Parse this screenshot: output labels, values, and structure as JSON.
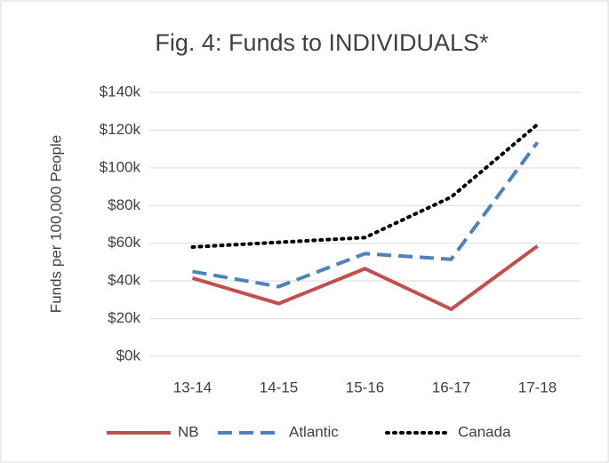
{
  "chart_data": {
    "type": "line",
    "title": "Fig. 4: Funds to INDIVIDUALS*",
    "y_label": "Funds per 100,000 People",
    "categories": [
      "13-14",
      "14-15",
      "15-16",
      "16-17",
      "17-18"
    ],
    "series": [
      {
        "name": "NB",
        "color": "#c0504d",
        "dash": "solid",
        "values": [
          41500,
          28000,
          46500,
          25000,
          58500
        ]
      },
      {
        "name": "Atlantic",
        "color": "#4f81bd",
        "dash": "dashed",
        "values": [
          45000,
          37000,
          54500,
          51500,
          113500
        ]
      },
      {
        "name": "Canada",
        "color": "#000000",
        "dash": "dotted",
        "values": [
          58000,
          60500,
          63000,
          84500,
          123000
        ]
      }
    ],
    "ylim": [
      0,
      140000
    ],
    "yticks": [
      {
        "value": 0,
        "label": "$0k"
      },
      {
        "value": 20000,
        "label": "$20k"
      },
      {
        "value": 40000,
        "label": "$40k"
      },
      {
        "value": 60000,
        "label": "$60k"
      },
      {
        "value": 80000,
        "label": "$80k"
      },
      {
        "value": 100000,
        "label": "$100k"
      },
      {
        "value": 120000,
        "label": "$120k"
      },
      {
        "value": 140000,
        "label": "$140k"
      }
    ],
    "grid": true,
    "legend": "bottom"
  }
}
